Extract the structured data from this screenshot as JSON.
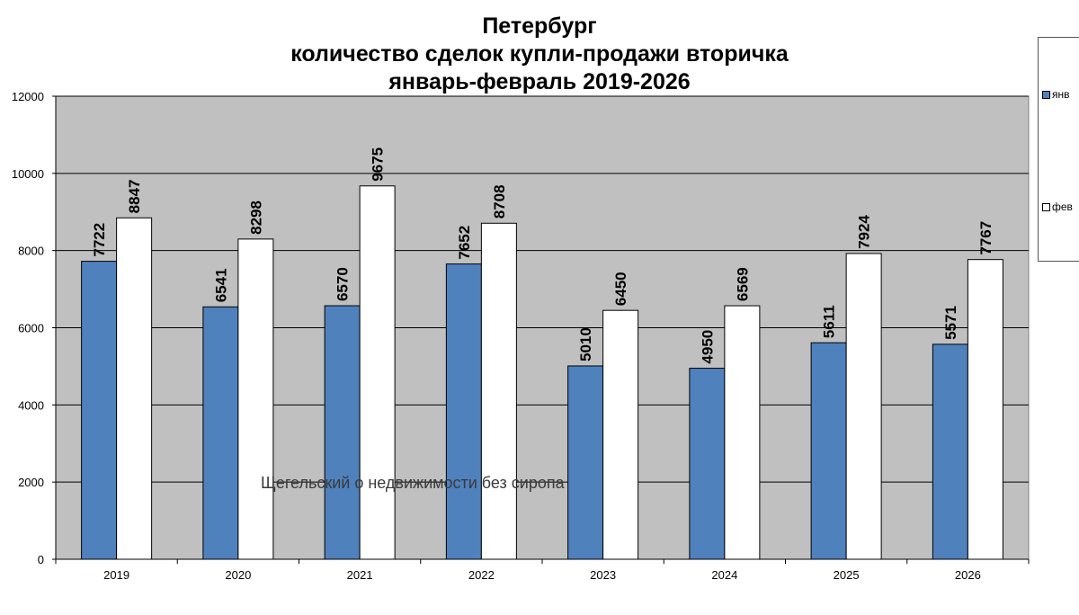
{
  "chart_data": {
    "type": "bar",
    "title_lines": [
      "Петербург",
      "количество сделок купли-продажи вторичка",
      "январь-февраль 2019-2026"
    ],
    "categories": [
      "2019",
      "2020",
      "2021",
      "2022",
      "2023",
      "2024",
      "2025",
      "2026"
    ],
    "series": [
      {
        "name": "янв",
        "color": "#4f81bd",
        "values": [
          7722,
          6541,
          6570,
          7652,
          5010,
          4950,
          5611,
          5571
        ]
      },
      {
        "name": "фев",
        "color": "#ffffff",
        "values": [
          8847,
          8298,
          9675,
          8708,
          6450,
          6569,
          7924,
          7767
        ]
      }
    ],
    "ylim": [
      0,
      12000
    ],
    "yticks": [
      0,
      2000,
      4000,
      6000,
      8000,
      10000,
      12000
    ],
    "grid": true,
    "plot_background": "#c0c0c0",
    "legend_position": "right",
    "watermark": "Щегельский о недвижимости без сиропа"
  }
}
